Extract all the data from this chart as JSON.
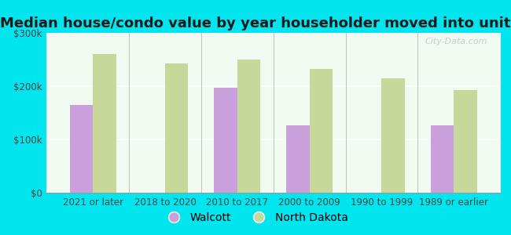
{
  "title": "Median house/condo value by year householder moved into unit",
  "categories": [
    "2021 or later",
    "2018 to 2020",
    "2010 to 2017",
    "2000 to 2009",
    "1990 to 1999",
    "1989 or earlier"
  ],
  "walcott_values": [
    165000,
    null,
    197000,
    127000,
    null,
    127000
  ],
  "nd_values": [
    260000,
    243000,
    250000,
    232000,
    215000,
    193000
  ],
  "walcott_color": "#c9a0dc",
  "nd_color": "#c8d89a",
  "background_outer": "#00e5ee",
  "background_inner": "#f0faf0",
  "ylim": [
    0,
    300000
  ],
  "yticks": [
    0,
    100000,
    200000,
    300000
  ],
  "ytick_labels": [
    "$0",
    "$100k",
    "$200k",
    "$300k"
  ],
  "bar_width": 0.32,
  "legend_walcott": "Walcott",
  "legend_nd": "North Dakota",
  "title_fontsize": 13,
  "tick_fontsize": 8.5
}
